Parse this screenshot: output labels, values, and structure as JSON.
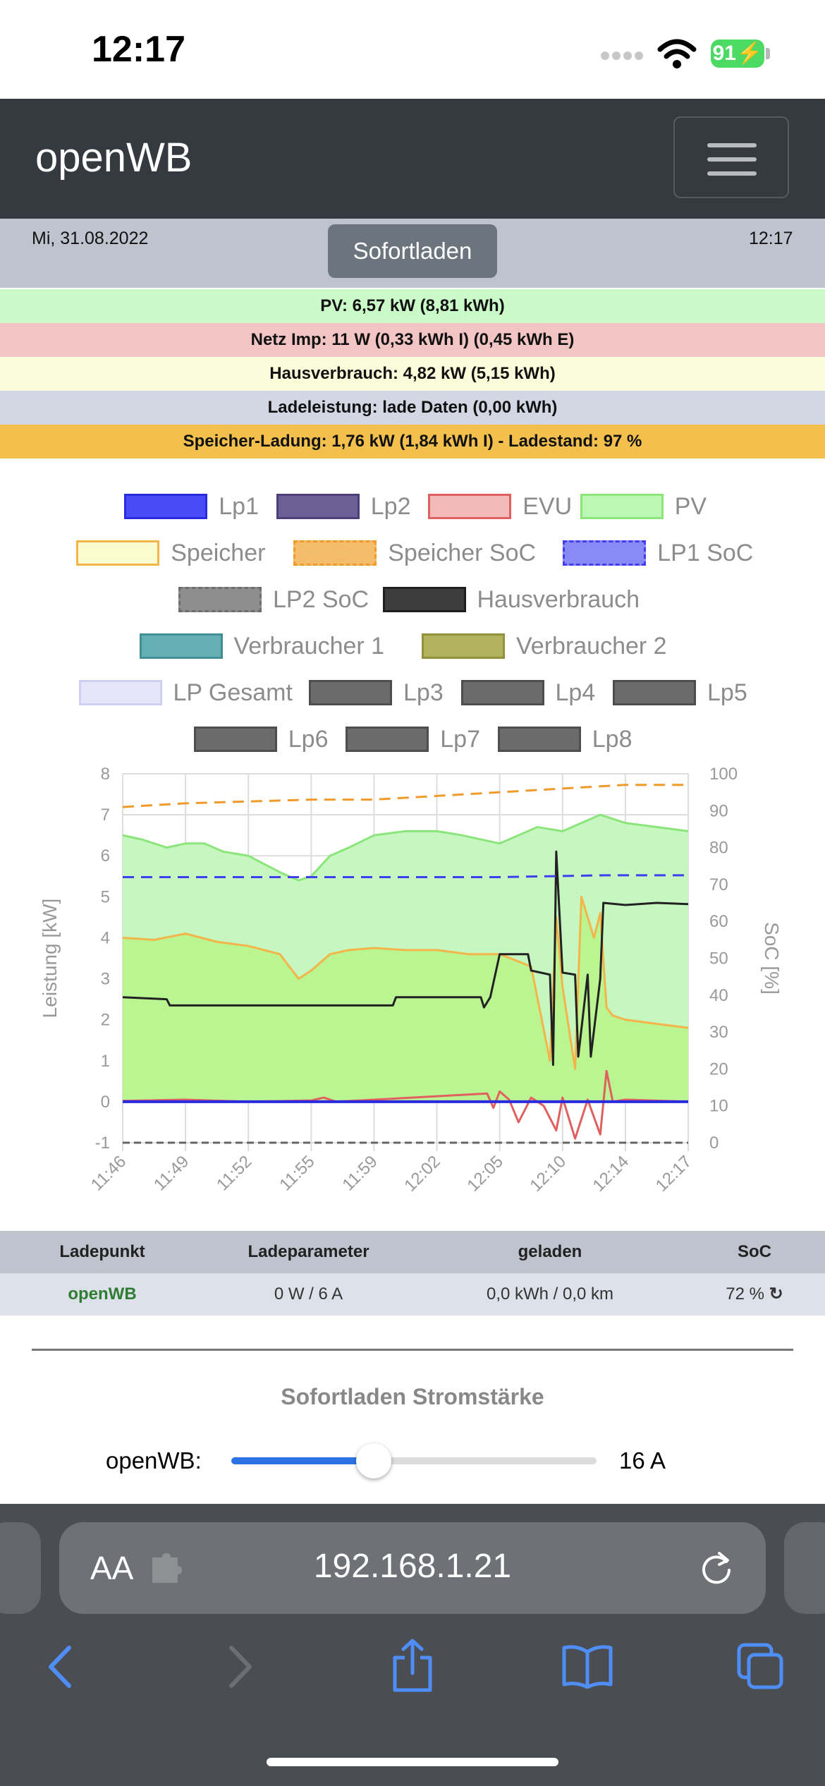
{
  "status_bar": {
    "time": "12:17",
    "battery": "91"
  },
  "header": {
    "brand": "openWB",
    "menu_icon": "hamburger-icon"
  },
  "info": {
    "date": "Mi, 31.08.2022",
    "time": "12:17",
    "mode_button": "Sofortladen"
  },
  "bars": [
    {
      "text": "PV: 6,57 kW (8,81 kWh)",
      "color": "#c9fac8"
    },
    {
      "text": "Netz Imp: 11 W (0,33 kWh I) (0,45 kWh E)",
      "color": "#f3c4c4"
    },
    {
      "text": "Hausverbrauch: 4,82 kW (5,15 kWh)",
      "color": "#fbfcd9"
    },
    {
      "text": "Ladeleistung: lade Daten (0,00 kWh)",
      "color": "#d2d7e3"
    },
    {
      "text": "Speicher-Ladung: 1,76 kW (1,84 kWh I) - Ladestand: 97 %",
      "color": "#f3c04d"
    }
  ],
  "legend": [
    {
      "label": "Lp1",
      "fill": "#4a4af7",
      "border": "#2a2adf",
      "dashed": false
    },
    {
      "label": "Lp2",
      "fill": "#6c5f96",
      "border": "#4d4078",
      "dashed": false
    },
    {
      "label": "EVU",
      "fill": "#f3baba",
      "border": "#e06060",
      "dashed": false
    },
    {
      "label": "PV",
      "fill": "#bdf7b4",
      "border": "#8be57a",
      "dashed": false
    },
    {
      "label": "Speicher",
      "fill": "#fbfcd0",
      "border": "#f3b54a",
      "dashed": false
    },
    {
      "label": "Speicher SoC",
      "fill": "#f3bd6c",
      "border": "#ef9a2a",
      "dashed": true
    },
    {
      "label": "LP1 SoC",
      "fill": "#8a8af7",
      "border": "#3f3fef",
      "dashed": true
    },
    {
      "label": "LP2 SoC",
      "fill": "#8e8e8e",
      "border": "#6e6e6e",
      "dashed": true
    },
    {
      "label": "Hausverbrauch",
      "fill": "#3d3d3d",
      "border": "#1f1f1f",
      "dashed": false
    },
    {
      "label": "Verbraucher 1",
      "fill": "#64b0b4",
      "border": "#3f9095",
      "dashed": false
    },
    {
      "label": "Verbraucher 2",
      "fill": "#b3b25c",
      "border": "#93923c",
      "dashed": false
    },
    {
      "label": "LP Gesamt",
      "fill": "#e6e6fa",
      "border": "#cfcff0",
      "dashed": false
    },
    {
      "label": "Lp3",
      "fill": "#6b6b6b",
      "border": "#4e4e4e",
      "dashed": false
    },
    {
      "label": "Lp4",
      "fill": "#6b6b6b",
      "border": "#4e4e4e",
      "dashed": false
    },
    {
      "label": "Lp5",
      "fill": "#6b6b6b",
      "border": "#4e4e4e",
      "dashed": false
    },
    {
      "label": "Lp6",
      "fill": "#6b6b6b",
      "border": "#4e4e4e",
      "dashed": false
    },
    {
      "label": "Lp7",
      "fill": "#6b6b6b",
      "border": "#4e4e4e",
      "dashed": false
    },
    {
      "label": "Lp8",
      "fill": "#6b6b6b",
      "border": "#4e4e4e",
      "dashed": false
    }
  ],
  "chart_data": {
    "type": "area",
    "ylabel": "Leistung [kW]",
    "ylabel_right": "SoC [%]",
    "ylim": [
      -1,
      8
    ],
    "ylim_right": [
      0,
      100
    ],
    "yticks": [
      "8",
      "7",
      "6",
      "5",
      "4",
      "3",
      "2",
      "1",
      "0",
      "-1"
    ],
    "yticks_right": [
      "100",
      "90",
      "80",
      "70",
      "60",
      "50",
      "40",
      "30",
      "20",
      "10",
      "0"
    ],
    "xticks": [
      "11:46",
      "11:49",
      "11:52",
      "11:55",
      "11:59",
      "12:02",
      "12:05",
      "12:10",
      "12:14",
      "12:17"
    ],
    "grid": true,
    "series": [
      {
        "name": "PV",
        "color": "#8be57a",
        "x": [
          0,
          0.3,
          0.7,
          1,
          1.3,
          1.6,
          2,
          2.5,
          2.8,
          3,
          3.3,
          3.6,
          4,
          4.5,
          5,
          5.4,
          6,
          6.3,
          6.6,
          7,
          7.3,
          7.6,
          8,
          8.5,
          9
        ],
        "values": [
          6.5,
          6.4,
          6.2,
          6.3,
          6.3,
          6.1,
          6.0,
          5.6,
          5.4,
          5.5,
          6.0,
          6.2,
          6.5,
          6.6,
          6.6,
          6.5,
          6.3,
          6.5,
          6.7,
          6.6,
          6.8,
          7.0,
          6.8,
          6.7,
          6.6
        ]
      },
      {
        "name": "Speicher",
        "color": "#f3b54a",
        "x": [
          0,
          0.5,
          1,
          1.5,
          2,
          2.5,
          2.8,
          3,
          3.3,
          3.6,
          4,
          4.5,
          5,
          5.5,
          6,
          6.5,
          6.8,
          6.9,
          7,
          7.2,
          7.3,
          7.5,
          7.6,
          7.7,
          7.8,
          8,
          8.5,
          9
        ],
        "values": [
          4.0,
          3.95,
          4.1,
          3.9,
          3.8,
          3.6,
          3.0,
          3.2,
          3.6,
          3.7,
          3.75,
          3.7,
          3.7,
          3.6,
          3.6,
          3.3,
          1.0,
          4.5,
          2.8,
          0.8,
          5.0,
          4.0,
          4.6,
          2.3,
          2.1,
          2.0,
          1.9,
          1.8
        ]
      },
      {
        "name": "Hausverbrauch",
        "color": "#222222",
        "x": [
          0,
          0.7,
          0.75,
          2,
          3,
          4,
          4.3,
          4.35,
          5,
          5.7,
          5.75,
          5.85,
          6,
          6.45,
          6.5,
          6.8,
          6.85,
          6.9,
          7,
          7.2,
          7.25,
          7.4,
          7.45,
          7.6,
          7.65,
          8,
          8.5,
          9
        ],
        "values": [
          2.55,
          2.5,
          2.35,
          2.35,
          2.35,
          2.35,
          2.35,
          2.55,
          2.55,
          2.55,
          2.3,
          2.55,
          3.6,
          3.6,
          3.2,
          3.1,
          0.9,
          6.1,
          3.15,
          3.1,
          1.1,
          3.1,
          1.1,
          3.0,
          4.85,
          4.8,
          4.85,
          4.82
        ]
      },
      {
        "name": "EVU",
        "color": "#e06060",
        "x": [
          0,
          1,
          2,
          3,
          3.2,
          3.4,
          5.8,
          5.9,
          6,
          6.15,
          6.3,
          6.5,
          6.7,
          6.9,
          7,
          7.2,
          7.4,
          7.6,
          7.7,
          7.8,
          8,
          9
        ],
        "values": [
          0.02,
          0.05,
          0.0,
          0.03,
          0.1,
          0.0,
          0.2,
          -0.15,
          0.25,
          0.05,
          -0.5,
          0.1,
          -0.1,
          -0.7,
          0.1,
          -0.9,
          0.05,
          -0.8,
          0.75,
          0.0,
          0.05,
          0.0
        ]
      },
      {
        "name": "Speicher SoC",
        "color": "#ef9a2a",
        "axis": "right",
        "x": [
          0,
          1,
          2,
          3,
          4,
          5,
          6,
          7,
          8,
          9
        ],
        "values": [
          91,
          92,
          92.5,
          93,
          93,
          94,
          95,
          96,
          97,
          97
        ]
      },
      {
        "name": "LP1 SoC",
        "color": "#3f3fef",
        "axis": "right",
        "x": [
          0,
          3,
          6,
          7.7,
          9
        ],
        "values": [
          72,
          72,
          72,
          72.5,
          72.5
        ]
      },
      {
        "name": "Lp1",
        "color": "#2a2adf",
        "x": [
          0,
          9
        ],
        "values": [
          0.0,
          0.0
        ]
      }
    ]
  },
  "table": {
    "headers": [
      "Ladepunkt",
      "Ladeparameter",
      "geladen",
      "SoC"
    ],
    "row": {
      "ladepunkt": "openWB",
      "parameter": "0 W / 6 A",
      "geladen": "0,0 kWh / 0,0 km",
      "soc": "72 %",
      "soc_icon": "refresh-icon"
    }
  },
  "sofort": {
    "title": "Sofortladen Stromstärke",
    "label": "openWB:",
    "value": "16 A",
    "fraction": 0.39
  },
  "browser": {
    "text_size": "AA",
    "url": "192.168.1.21"
  }
}
